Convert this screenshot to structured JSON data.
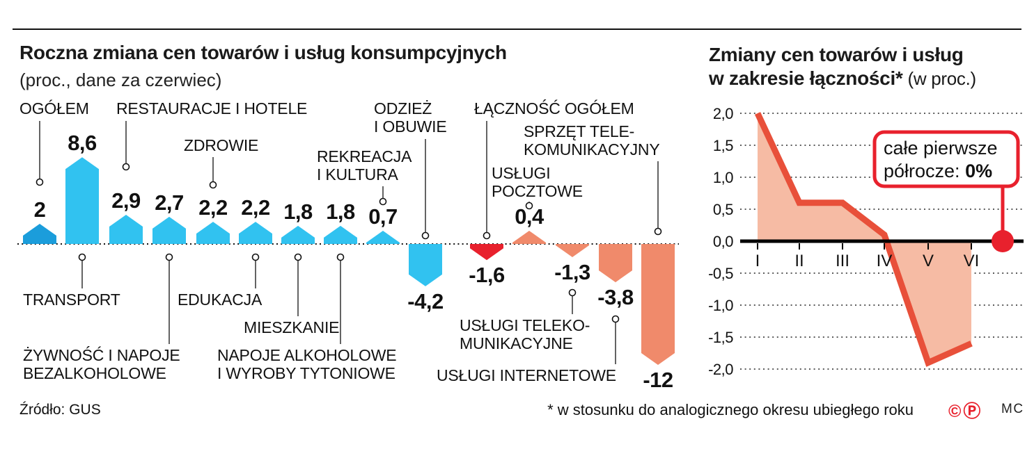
{
  "header": {
    "left_title": "Roczna zmiana cen towarów i usług konsumpcyjnych",
    "left_subtitle": "(proc., dane za czerwiec)",
    "right_title_line1": "Zmiany cen towarów i usług",
    "right_title_line2_bold": "w zakresie łączności*",
    "right_title_line2_regular": " (w proc.)"
  },
  "footer": {
    "source": "Źródło: GUS",
    "footnote": "* w stosunku do analogicznego okresu ubiegłego roku",
    "copyright_marks": "©Ⓟ",
    "credit": "MC"
  },
  "colors": {
    "blue_dark": "#1b9ddb",
    "cyan": "#31c2f0",
    "red": "#e8212d",
    "salmon": "#f08a6b",
    "line_red": "#e8503a",
    "area_fill": "#f6bba4",
    "callout_border": "#e8212d",
    "dot": "#e8212d",
    "ink": "#111111"
  },
  "chart_data": [
    {
      "type": "bar",
      "title": "Roczna zmiana cen towarów i usług konsumpcyjnych",
      "subtitle": "(proc., dane za czerwiec)",
      "unit": "proc., rok do roku, dane za czerwiec",
      "bars": [
        {
          "category": "OGÓŁEM",
          "value": 2,
          "value_label": "2",
          "color_key": "blue_dark",
          "category_position": "top"
        },
        {
          "category": "TRANSPORT",
          "value": 8.6,
          "value_label": "8,6",
          "color_key": "cyan",
          "category_position": "bottom"
        },
        {
          "category": "RESTAURACJE I HOTELE",
          "value": 2.9,
          "value_label": "2,9",
          "color_key": "cyan",
          "category_position": "top"
        },
        {
          "category": "ŻYWNOŚĆ I NAPOJE\nBEZALKOHOLOWE",
          "value": 2.7,
          "value_label": "2,7",
          "color_key": "cyan",
          "category_position": "bottom"
        },
        {
          "category": "ZDROWIE",
          "value": 2.2,
          "value_label": "2,2",
          "color_key": "cyan",
          "category_position": "top"
        },
        {
          "category": "EDUKACJA",
          "value": 2.2,
          "value_label": "2,2",
          "color_key": "cyan",
          "category_position": "bottom"
        },
        {
          "category": "MIESZKANIE",
          "value": 1.8,
          "value_label": "1,8",
          "color_key": "cyan",
          "category_position": "bottom"
        },
        {
          "category": "NAPOJE ALKOHOLOWE\nI WYROBY TYTONIOWE",
          "value": 1.8,
          "value_label": "1,8",
          "color_key": "cyan",
          "category_position": "bottom"
        },
        {
          "category": "REKREACJA\nI KULTURA",
          "value": 0.7,
          "value_label": "0,7",
          "color_key": "cyan",
          "category_position": "top"
        },
        {
          "category": "ODZIEŻ\nI OBUWIE",
          "value": -4.2,
          "value_label": "-4,2",
          "color_key": "cyan",
          "category_position": "top"
        },
        {
          "category": "ŁĄCZNOŚĆ OGÓŁEM",
          "value": -1.6,
          "value_label": "-1,6",
          "color_key": "red",
          "category_position": "top"
        },
        {
          "category": "USŁUGI\nPOCZTOWE",
          "value": 0.4,
          "value_label": "0,4",
          "color_key": "salmon",
          "category_position": "top"
        },
        {
          "category": "USŁUGI TELEKO-\nMUNIKACYJNE",
          "value": -1.3,
          "value_label": "-1,3",
          "color_key": "salmon",
          "category_position": "bottom"
        },
        {
          "category": "USŁUGI INTERNETOWE",
          "value": -3.8,
          "value_label": "-3,8",
          "color_key": "salmon",
          "category_position": "bottom"
        },
        {
          "category": "SPRZĘT TELE-\nKOMUNIKACYJNY",
          "value": -12,
          "value_label": "-12",
          "color_key": "salmon",
          "category_position": "top"
        }
      ]
    },
    {
      "type": "line",
      "title": "Zmiany cen towarów i usług w zakresie łączności* (w proc.)",
      "x_labels": [
        "I",
        "II",
        "III",
        "IV",
        "V",
        "VI"
      ],
      "values": [
        2.0,
        0.6,
        0.6,
        0.1,
        -1.9,
        -1.6
      ],
      "y_ticks": [
        {
          "label": "2,0",
          "value": 2
        },
        {
          "label": "1,5",
          "value": 1.5
        },
        {
          "label": "1,0",
          "value": 1
        },
        {
          "label": "0,5",
          "value": 0.5
        },
        {
          "label": "0,0",
          "value": 0
        },
        {
          "label": "-0,5",
          "value": -0.5
        },
        {
          "label": "-1,0",
          "value": -1
        },
        {
          "label": "-1,5",
          "value": -1.5
        },
        {
          "label": "-2,0",
          "value": -2
        }
      ],
      "ylim": [
        -2.2,
        2.1
      ],
      "grid": "dotted horizontal",
      "annotation": {
        "line1": "całe pierwsze",
        "line2_prefix": "półrocze: ",
        "line2_value": "0%",
        "marker_value": 0
      }
    }
  ]
}
